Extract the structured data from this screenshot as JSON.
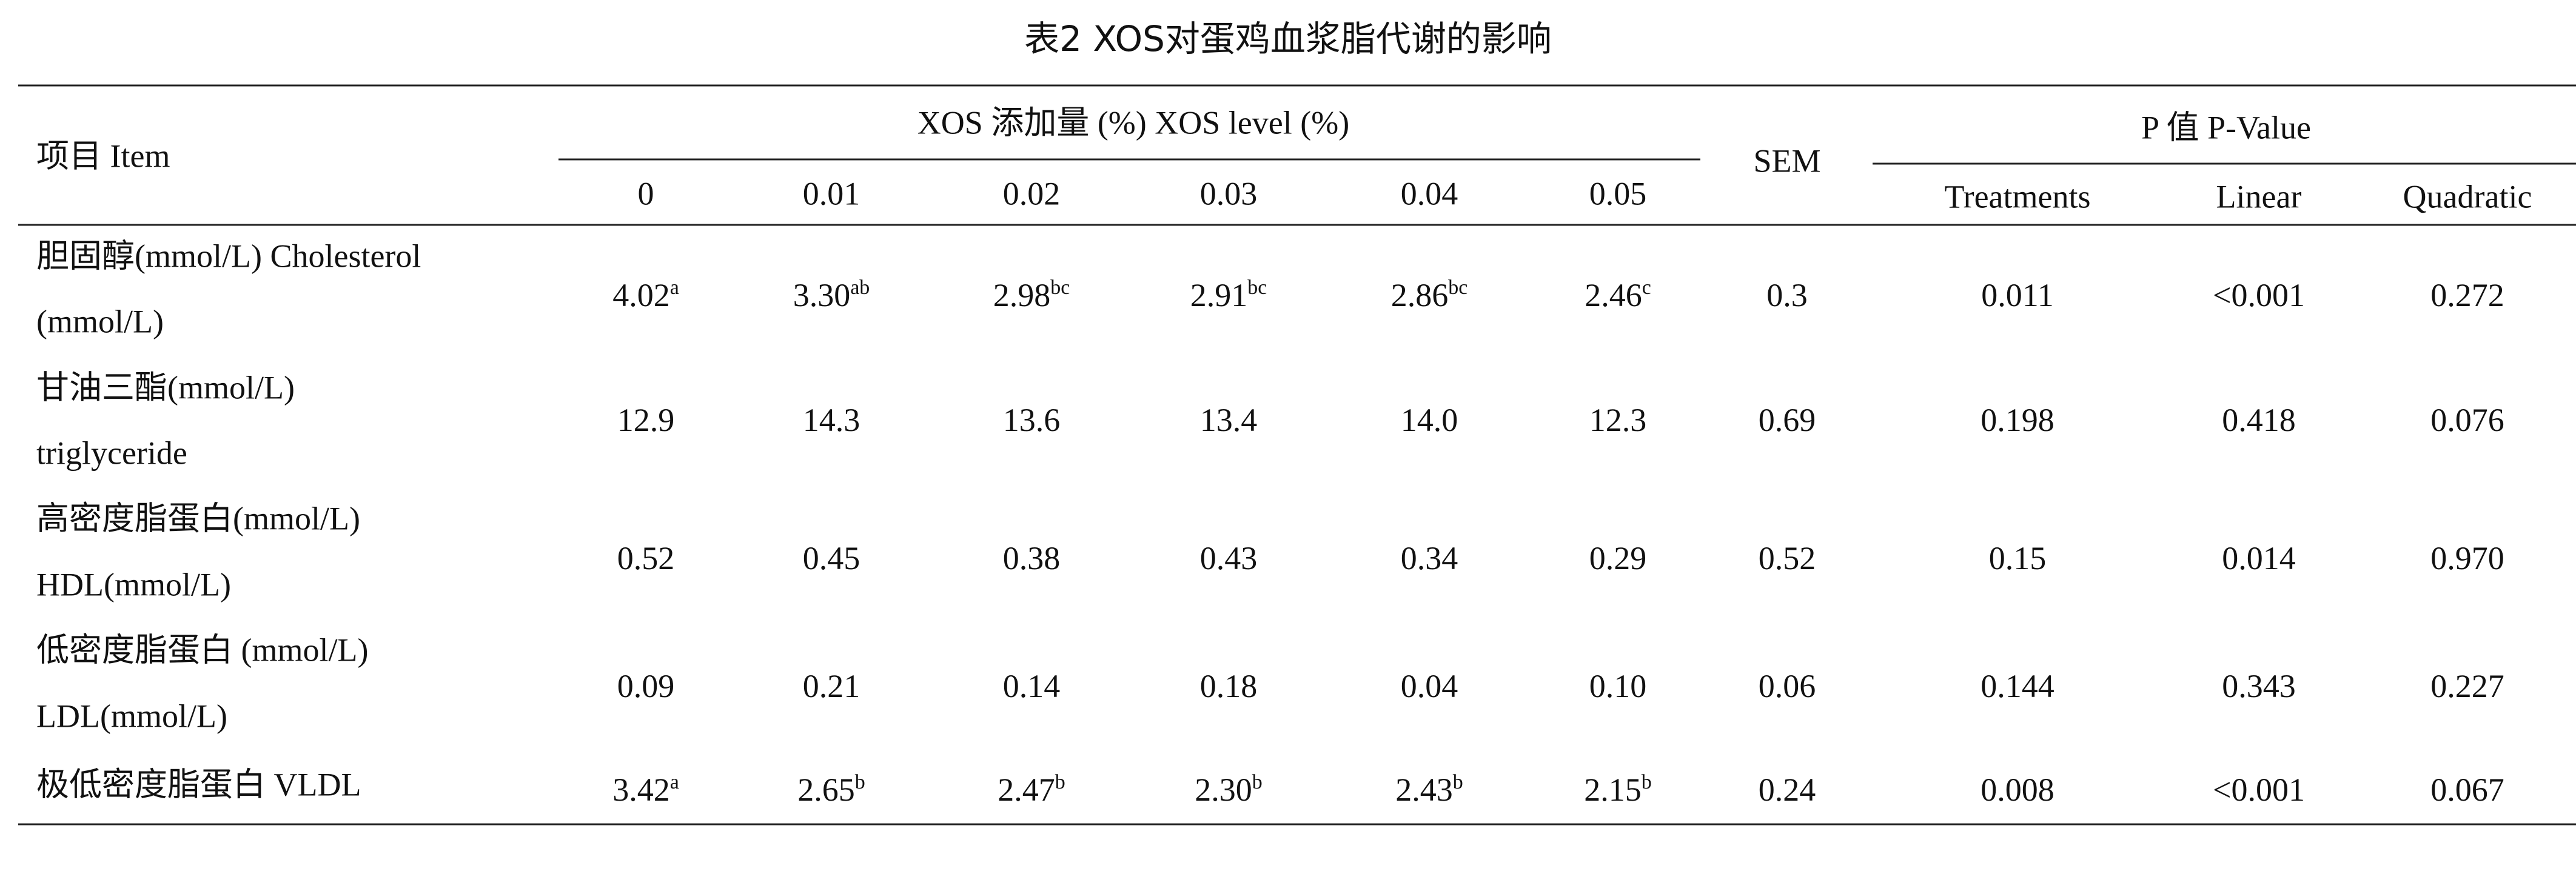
{
  "title": "表2 XOS对蛋鸡血浆脂代谢的影响",
  "header": {
    "item": "项目 Item",
    "level_group": "XOS 添加量 (%) XOS level (%)",
    "levels": [
      "0",
      "0.01",
      "0.02",
      "0.03",
      "0.04",
      "0.05"
    ],
    "sem": "SEM",
    "p_group": "P 值 P-Value",
    "p_columns": [
      "Treatments",
      "Linear",
      "Quadratic"
    ]
  },
  "table": {
    "rows": [
      {
        "label": [
          "胆固醇(mmol/L) Cholesterol",
          "(mmol/L)"
        ],
        "cells": [
          {
            "text": "4.02",
            "sup": "a"
          },
          {
            "text": "3.30",
            "sup": "ab"
          },
          {
            "text": "2.98",
            "sup": "bc"
          },
          {
            "text": "2.91",
            "sup": "bc"
          },
          {
            "text": "2.86",
            "sup": "bc"
          },
          {
            "text": "2.46",
            "sup": "c"
          },
          {
            "text": "0.3"
          },
          {
            "text": "0.011"
          },
          {
            "text": "<0.001"
          },
          {
            "text": "0.272"
          }
        ]
      },
      {
        "label": [
          "甘油三酯(mmol/L)",
          "triglyceride"
        ],
        "cells": [
          {
            "text": "12.9"
          },
          {
            "text": "14.3"
          },
          {
            "text": "13.6"
          },
          {
            "text": "13.4"
          },
          {
            "text": "14.0"
          },
          {
            "text": "12.3"
          },
          {
            "text": "0.69"
          },
          {
            "text": "0.198"
          },
          {
            "text": "0.418"
          },
          {
            "text": "0.076"
          }
        ]
      },
      {
        "label": [
          "高密度脂蛋白(mmol/L)",
          "HDL(mmol/L)"
        ],
        "cells": [
          {
            "text": "0.52"
          },
          {
            "text": "0.45"
          },
          {
            "text": "0.38"
          },
          {
            "text": "0.43"
          },
          {
            "text": "0.34"
          },
          {
            "text": "0.29"
          },
          {
            "text": "0.52"
          },
          {
            "text": "0.15"
          },
          {
            "text": "0.014"
          },
          {
            "text": "0.970"
          }
        ]
      },
      {
        "label": [
          "低密度脂蛋白 (mmol/L)",
          "LDL(mmol/L)"
        ],
        "cells": [
          {
            "text": "0.09"
          },
          {
            "text": "0.21"
          },
          {
            "text": "0.14"
          },
          {
            "text": "0.18"
          },
          {
            "text": "0.04"
          },
          {
            "text": "0.10"
          },
          {
            "text": "0.06"
          },
          {
            "text": "0.144"
          },
          {
            "text": "0.343"
          },
          {
            "text": "0.227"
          }
        ]
      },
      {
        "label": [
          "极低密度脂蛋白 VLDL"
        ],
        "cells": [
          {
            "text": "3.42",
            "sup": "a"
          },
          {
            "text": "2.65",
            "sup": "b"
          },
          {
            "text": "2.47",
            "sup": "b"
          },
          {
            "text": "2.30",
            "sup": "b"
          },
          {
            "text": "2.43",
            "sup": "b"
          },
          {
            "text": "2.15",
            "sup": "b"
          },
          {
            "text": "0.24"
          },
          {
            "text": "0.008"
          },
          {
            "text": "<0.001"
          },
          {
            "text": "0.067"
          }
        ]
      }
    ]
  }
}
